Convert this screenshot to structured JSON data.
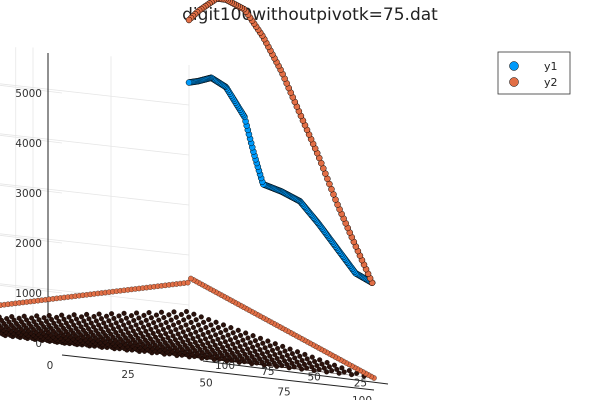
{
  "chart_data": {
    "type": "scatter",
    "projection": "3d",
    "title": "digit100withoutpivotk=75.dat",
    "xlabel": "",
    "ylabel": "",
    "zlabel": "",
    "xlim": [
      0,
      100
    ],
    "ylim": [
      0,
      100
    ],
    "zlim": [
      0,
      5800
    ],
    "x_ticks": [
      "0",
      "25",
      "50",
      "75",
      "100"
    ],
    "y_ticks": [
      "25",
      "50",
      "75",
      "100"
    ],
    "z_ticks": [
      "0",
      "1000",
      "2000",
      "3000",
      "4000",
      "5000"
    ],
    "x_tick_values": [
      0,
      25,
      50,
      75,
      100
    ],
    "y_tick_values": [
      25,
      50,
      75,
      100
    ],
    "z_tick_values": [
      0,
      1000,
      2000,
      3000,
      4000,
      5000
    ],
    "grid": true,
    "legend_position": "top-right",
    "colors": {
      "y1": "#009AFA",
      "y2": "#E26F46",
      "floor_dark": "#2a120c"
    },
    "floor": {
      "description_values": "dense grid of markers near z=0 over x in [0,100], y in [0,100]",
      "z_far_edge": [
        0,
        1450
      ],
      "z_right_edge": [
        0,
        1550
      ]
    },
    "series": [
      {
        "name": "y1",
        "x": 100,
        "y_range": [
          1,
          100
        ],
        "z_knots_y": [
          1,
          10,
          20,
          30,
          40,
          50,
          60,
          65,
          70,
          80,
          88,
          95,
          100
        ],
        "z_knots_val": [
          1900,
          2050,
          2500,
          2950,
          3350,
          3500,
          3600,
          4200,
          4900,
          5450,
          5600,
          5500,
          5450
        ]
      },
      {
        "name": "y2",
        "x": 100,
        "y_range": [
          1,
          100
        ],
        "z_knots_y": [
          1,
          10,
          20,
          30,
          40,
          50,
          60,
          70,
          80,
          85,
          90,
          95,
          100
        ],
        "z_knots_val": [
          1900,
          2600,
          3400,
          4300,
          5100,
          5900,
          6550,
          7050,
          7200,
          7200,
          7050,
          6900,
          6700
        ]
      }
    ]
  }
}
